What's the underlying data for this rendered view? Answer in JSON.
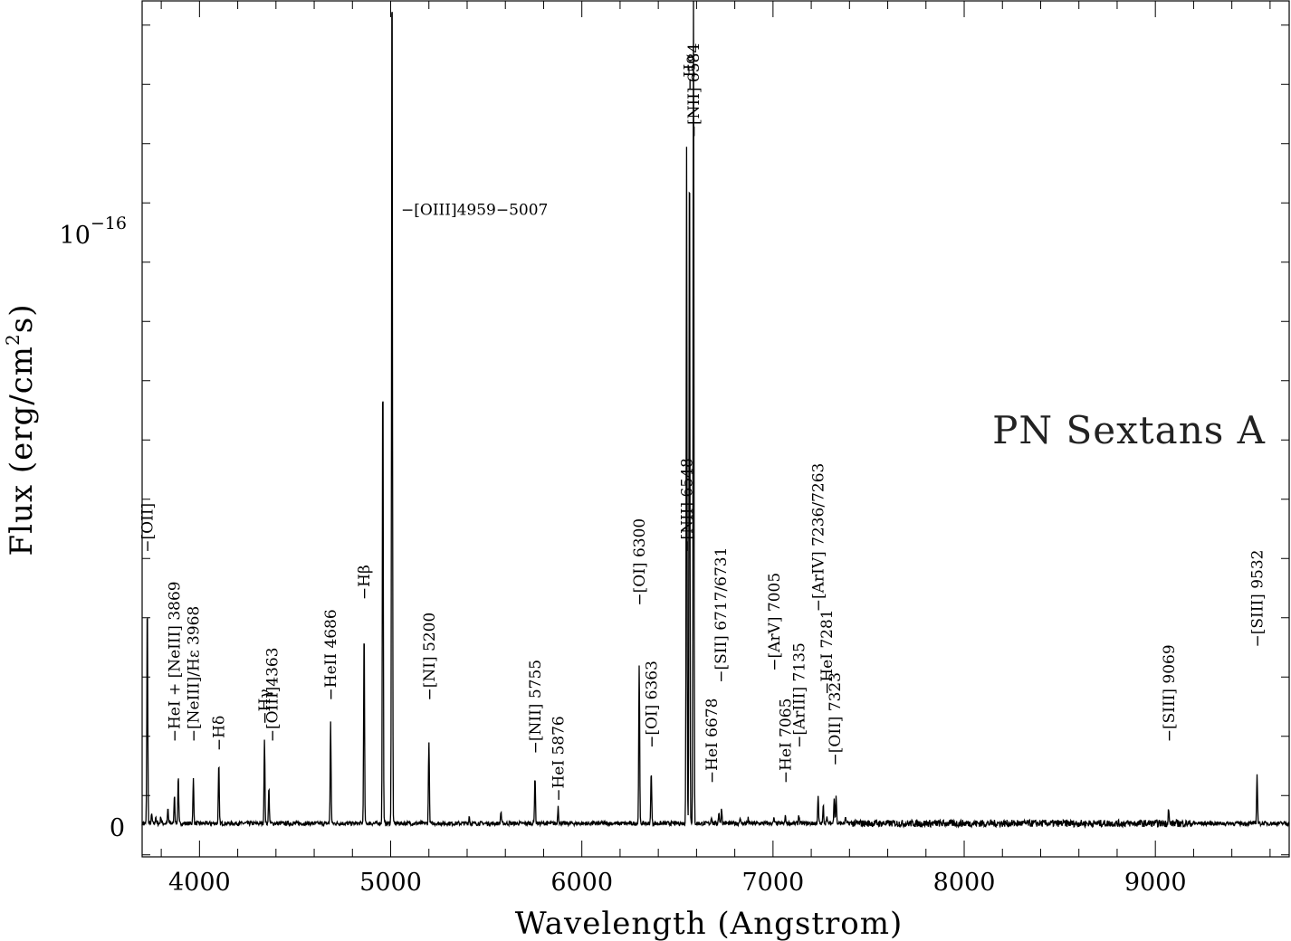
{
  "chart_data": {
    "type": "line",
    "title": "PN Sextans A",
    "xlabel": "Wavelength (Angstrom)",
    "ylabel": "Flux (erg/cm",
    "ylabel_sup": "2",
    "ylabel_tail": "s)",
    "xlim": [
      3700,
      9700
    ],
    "ylim": [
      -5e-18,
      1.4e-16
    ],
    "grid": false,
    "legend": "none",
    "x_ticks": [
      {
        "value": 4000,
        "label": "4000"
      },
      {
        "value": 5000,
        "label": "5000"
      },
      {
        "value": 6000,
        "label": "6000"
      },
      {
        "value": 7000,
        "label": "7000"
      },
      {
        "value": 8000,
        "label": "8000"
      },
      {
        "value": 9000,
        "label": "9000"
      }
    ],
    "y_ticks": [
      {
        "value": 0,
        "label": "0",
        "sup": ""
      },
      {
        "value": 1e-16,
        "label": "10",
        "sup": "−16"
      }
    ],
    "continuum": 3e-19,
    "lines": [
      {
        "x": 3727,
        "peak": 3.8e-17,
        "w": 3
      },
      {
        "x": 3750,
        "peak": 1.5e-18,
        "w": 3
      },
      {
        "x": 3771,
        "peak": 1.2e-18,
        "w": 3
      },
      {
        "x": 3798,
        "peak": 1.2e-18,
        "w": 3
      },
      {
        "x": 3835,
        "peak": 2.5e-18,
        "w": 3
      },
      {
        "x": 3869,
        "peak": 5e-18,
        "w": 3
      },
      {
        "x": 3889,
        "peak": 8e-18,
        "w": 3
      },
      {
        "x": 3968,
        "peak": 7.5e-18,
        "w": 3
      },
      {
        "x": 4101,
        "peak": 1e-17,
        "w": 3
      },
      {
        "x": 4340,
        "peak": 1.4e-17,
        "w": 3
      },
      {
        "x": 4363,
        "peak": 6e-18,
        "w": 3
      },
      {
        "x": 4686,
        "peak": 1.7e-17,
        "w": 3
      },
      {
        "x": 4861,
        "peak": 3.3e-17,
        "w": 3
      },
      {
        "x": 4959,
        "peak": 7.8e-17,
        "w": 3
      },
      {
        "x": 5007,
        "peak": 1.5e-16,
        "w": 3
      },
      {
        "x": 5200,
        "peak": 1.4e-17,
        "w": 3
      },
      {
        "x": 5411,
        "peak": 1.2e-18,
        "w": 3
      },
      {
        "x": 5577,
        "peak": 2e-18,
        "w": 3
      },
      {
        "x": 5755,
        "peak": 8e-18,
        "w": 3
      },
      {
        "x": 5876,
        "peak": 3e-18,
        "w": 3
      },
      {
        "x": 6300,
        "peak": 2.7e-17,
        "w": 3
      },
      {
        "x": 6363,
        "peak": 9e-18,
        "w": 3
      },
      {
        "x": 6548,
        "peak": 1.14e-16,
        "w": 3
      },
      {
        "x": 6563,
        "peak": 1.17e-16,
        "w": 3
      },
      {
        "x": 6584,
        "peak": 1.5e-16,
        "w": 3
      },
      {
        "x": 6678,
        "peak": 1.2e-18,
        "w": 3
      },
      {
        "x": 6717,
        "peak": 2e-18,
        "w": 3
      },
      {
        "x": 6731,
        "peak": 2.5e-18,
        "w": 3
      },
      {
        "x": 6827,
        "peak": 1e-18,
        "w": 3
      },
      {
        "x": 6870,
        "peak": 8e-19,
        "w": 3
      },
      {
        "x": 7005,
        "peak": 8e-19,
        "w": 3
      },
      {
        "x": 7065,
        "peak": 1.2e-18,
        "w": 3
      },
      {
        "x": 7135,
        "peak": 1.5e-18,
        "w": 3
      },
      {
        "x": 7236,
        "peak": 4.5e-18,
        "w": 3
      },
      {
        "x": 7263,
        "peak": 3e-18,
        "w": 3
      },
      {
        "x": 7281,
        "peak": 1.2e-18,
        "w": 3
      },
      {
        "x": 7320,
        "peak": 4.5e-18,
        "w": 3
      },
      {
        "x": 7330,
        "peak": 4.5e-18,
        "w": 3
      },
      {
        "x": 7380,
        "peak": 1e-18,
        "w": 3
      },
      {
        "x": 9069,
        "peak": 2.5e-18,
        "w": 3
      },
      {
        "x": 9532,
        "peak": 8.5e-18,
        "w": 3
      }
    ],
    "annotations": [
      {
        "text": "[OII]",
        "x": 3727,
        "y": 4.6e-17,
        "rotate": true
      },
      {
        "text": "HeI + [NeIII] 3869",
        "x": 3869,
        "y": 1.4e-17,
        "rotate": true
      },
      {
        "text": "[NeIII]/Hε 3968",
        "x": 3968,
        "y": 1.4e-17,
        "rotate": true
      },
      {
        "text": "Hδ",
        "x": 4101,
        "y": 1.25e-17,
        "rotate": true
      },
      {
        "text": "Hγ",
        "x": 4340,
        "y": 1.7e-17,
        "rotate": true
      },
      {
        "text": "[OIII]4363",
        "x": 4380,
        "y": 1.4e-17,
        "rotate": true
      },
      {
        "text": "HeII 4686",
        "x": 4686,
        "y": 2.1e-17,
        "rotate": true
      },
      {
        "text": "Hβ",
        "x": 4861,
        "y": 3.8e-17,
        "rotate": true
      },
      {
        "text": "[OIII]4959−5007",
        "x": 5007,
        "y": 1.03e-16,
        "rotate": false
      },
      {
        "text": "[NI] 5200",
        "x": 5200,
        "y": 2.1e-17,
        "rotate": true
      },
      {
        "text": "[NII] 5755",
        "x": 5755,
        "y": 1.2e-17,
        "rotate": true
      },
      {
        "text": "HeI 5876",
        "x": 5876,
        "y": 4e-18,
        "rotate": true
      },
      {
        "text": "[OI] 6300",
        "x": 6300,
        "y": 3.7e-17,
        "rotate": true
      },
      {
        "text": "[OI] 6363",
        "x": 6363,
        "y": 1.3e-17,
        "rotate": true
      },
      {
        "text": "[NII] 6548",
        "x": 6548,
        "y": 4.6e-17,
        "rotate": true
      },
      {
        "text": "Hα",
        "x": 6563,
        "y": 1.24e-16,
        "rotate": true
      },
      {
        "text": "[NII] 6584",
        "x": 6584,
        "y": 1.16e-16,
        "rotate": true
      },
      {
        "text": "HeI 6678",
        "x": 6678,
        "y": 7e-18,
        "rotate": true
      },
      {
        "text": "[SII] 6717/6731",
        "x": 6725,
        "y": 2.4e-17,
        "rotate": true
      },
      {
        "text": "[ArV] 7005",
        "x": 7005,
        "y": 2.6e-17,
        "rotate": true
      },
      {
        "text": "HeI 7065",
        "x": 7065,
        "y": 7e-18,
        "rotate": true
      },
      {
        "text": "[ArIII] 7135",
        "x": 7135,
        "y": 1.3e-17,
        "rotate": true
      },
      {
        "text": "[ArIV] 7236/7263",
        "x": 7236,
        "y": 3.6e-17,
        "rotate": true
      },
      {
        "text": "HeI 7281",
        "x": 7281,
        "y": 2.2e-17,
        "rotate": true
      },
      {
        "text": "[OII] 7323",
        "x": 7323,
        "y": 1e-17,
        "rotate": true
      },
      {
        "text": "[SIII] 9069",
        "x": 9069,
        "y": 1.4e-17,
        "rotate": true
      },
      {
        "text": "[SIII] 9532",
        "x": 9532,
        "y": 3e-17,
        "rotate": true
      }
    ]
  }
}
